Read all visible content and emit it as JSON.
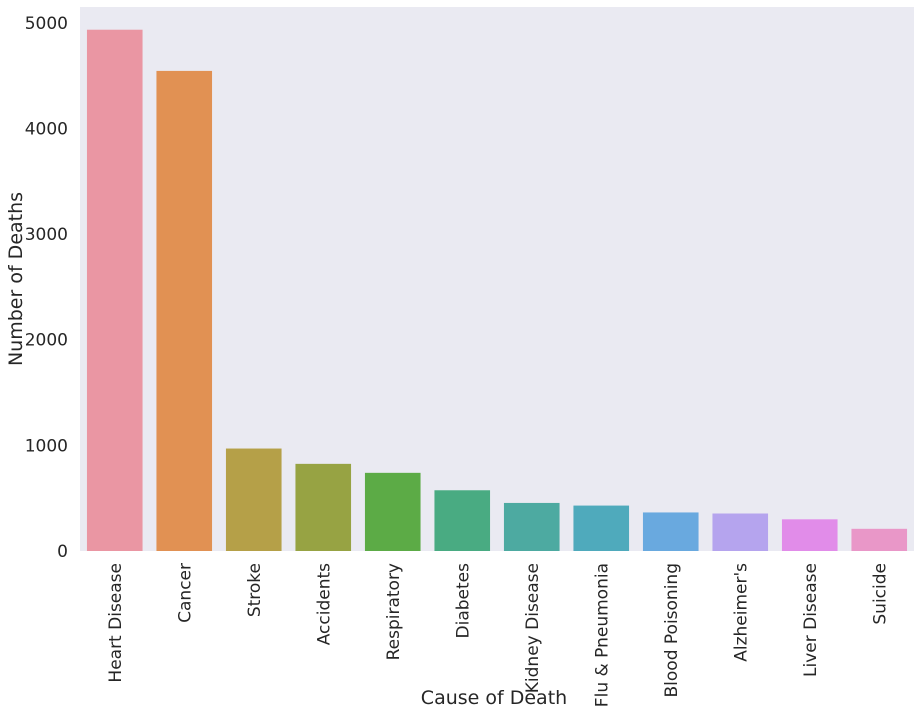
{
  "chart_data": {
    "type": "bar",
    "title": "",
    "xlabel": "Cause of Death",
    "ylabel": "Number of Deaths",
    "categories": [
      "Heart Disease",
      "Cancer",
      "Stroke",
      "Accidents",
      "Respiratory",
      "Diabetes",
      "Kidney Disease",
      "Flu & Pneumonia",
      "Blood Poisoning",
      "Alzheimer's",
      "Liver Disease",
      "Suicide"
    ],
    "values": [
      4935,
      4545,
      970,
      825,
      740,
      575,
      455,
      430,
      365,
      355,
      300,
      210
    ],
    "colors": [
      "#ea96a3",
      "#e19153",
      "#b5a048",
      "#97a343",
      "#5cab46",
      "#49ab82",
      "#4daaa1",
      "#4faabc",
      "#69a9df",
      "#b5a4ee",
      "#e18ce9",
      "#e997c8"
    ],
    "ylim": [
      0,
      5150
    ],
    "yticks": [
      0,
      1000,
      2000,
      3000,
      4000,
      5000
    ],
    "grid": false,
    "background": "#eaeaf2"
  }
}
